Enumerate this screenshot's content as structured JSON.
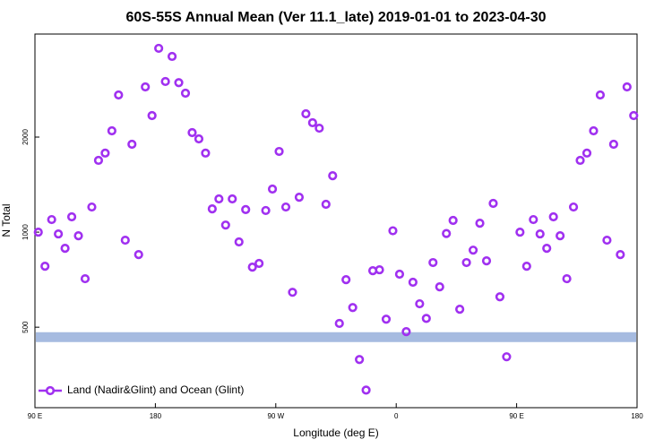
{
  "chart_data": {
    "type": "scatter",
    "title": "60S-55S Annual Mean (Ver 11.1_late)   2019-01-01 to 2023-04-30",
    "xlabel": "Longitude (deg E)",
    "ylabel": "N Total",
    "log_y": true,
    "legend": "lower left",
    "xlim": [
      90,
      540
    ],
    "ylim": [
      278,
      4240
    ],
    "xticks": [
      {
        "value": 90,
        "label": "90 E"
      },
      180,
      {
        "value": 270,
        "label": "90 W"
      },
      {
        "value": 360,
        "label": "0"
      },
      {
        "value": 450,
        "label": "90 E"
      },
      {
        "value": 540,
        "label": "180"
      }
    ],
    "yticks": [
      500,
      1000,
      2000
    ],
    "reference_band": {
      "value": 465,
      "color": "#a6bbe0"
    },
    "series": [
      {
        "name": "Land (Nadir&Glint) and Ocean (Glint)",
        "color": "#a030f0",
        "x": [
          92.5,
          97.5,
          102.5,
          107.5,
          112.5,
          117.5,
          122.5,
          127.5,
          132.5,
          137.5,
          142.5,
          147.5,
          152.5,
          157.5,
          162.5,
          167.5,
          172.5,
          177.5,
          182.5,
          187.5,
          192.5,
          197.5,
          202.5,
          207.5,
          212.5,
          217.5,
          222.5,
          227.5,
          232.5,
          237.5,
          242.5,
          247.5,
          252.5,
          257.5,
          262.5,
          267.5,
          272.5,
          277.5,
          282.5,
          287.5,
          292.5,
          297.5,
          302.5,
          307.5,
          312.5,
          317.5,
          322.5,
          327.5,
          332.5,
          337.5,
          342.5,
          347.5,
          352.5,
          357.5,
          362.5,
          367.5,
          372.5,
          377.5,
          382.5,
          387.5,
          392.5,
          397.5,
          402.5,
          407.5,
          412.5,
          417.5,
          422.5,
          427.5,
          432.5,
          437.5,
          442.5,
          452.5,
          457.5,
          462.5,
          467.5,
          472.5,
          477.5,
          482.5,
          487.5,
          492.5,
          497.5,
          502.5,
          507.5,
          512.5,
          517.5,
          522.5,
          527.5,
          532.5,
          537.5
        ],
        "values": [
          1000,
          780,
          1096,
          987,
          889,
          1118,
          974,
          712,
          1201,
          1688,
          1780,
          2094,
          2719,
          943,
          1898,
          849,
          2884,
          2340,
          3821,
          3000,
          3602,
          2975,
          2755,
          2066,
          1974,
          1780,
          1185,
          1274,
          1053,
          1274,
          931,
          1179,
          775,
          796,
          1171,
          1369,
          1801,
          1201,
          645,
          1290,
          2370,
          2221,
          2134,
          1225,
          1509,
          514,
          707,
          577,
          395,
          316,
          755,
          760,
          530,
          1010,
          736,
          484,
          694,
          593,
          533,
          801,
          671,
          990,
          1089,
          570,
          801,
          877,
          1067,
          811,
          1233,
          624,
          403,
          1000,
          780,
          1096,
          987,
          889,
          1118,
          974,
          712,
          1201,
          1688,
          1780,
          2094,
          2719,
          943,
          1898,
          849,
          2884,
          2340
        ]
      }
    ]
  }
}
